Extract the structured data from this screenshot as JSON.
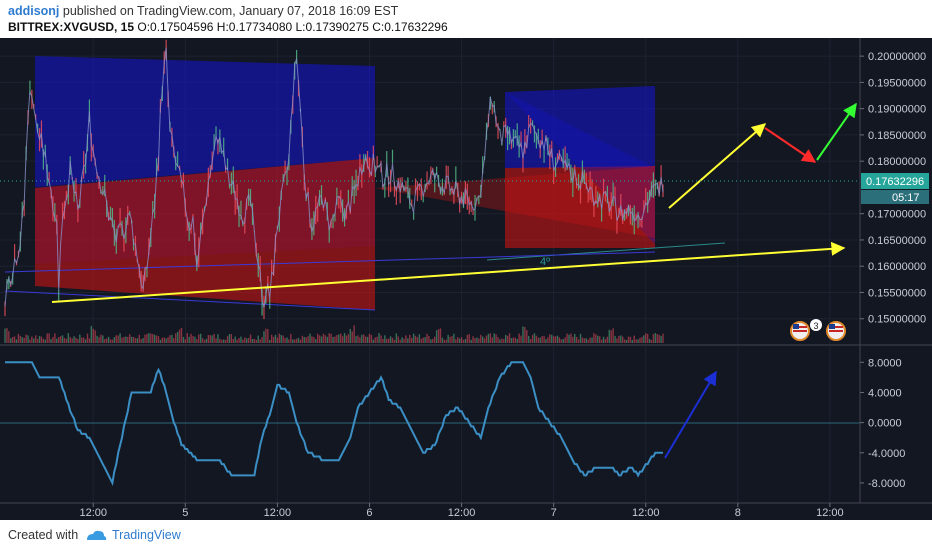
{
  "header": {
    "author": "addisonj",
    "published_text": "published on TradingView.com, January 07, 2018 16:09 EST",
    "symbol": "BITTREX:XVGUSD, 15",
    "ohlc": "O:0.17504596 H:0.17734080 L:0.17390275 C:0.17632296"
  },
  "footer": {
    "created_with": "Created with",
    "brand": "TradingView"
  },
  "colors": {
    "background": "#131722",
    "price_line": "#8a91c9",
    "price_up": "#53b987",
    "price_down": "#eb4d5c",
    "blue_channel": "#1414c8",
    "red_channel": "#c81414",
    "yellow_arrow": "#ffff33",
    "red_arrow": "#ff2a2a",
    "green_arrow": "#33ff33",
    "indicator_line": "#3b8fc4",
    "blue_arrow": "#1c2fd6",
    "last_price_tag": "#26a69a",
    "countdown_tag": "#2a6f7a"
  },
  "chart_data": [
    {
      "type": "line",
      "title": "",
      "ylabel": "",
      "ylim": [
        0.145,
        0.2025
      ],
      "y_ticks": [
        "0.20000000",
        "0.19500000",
        "0.19000000",
        "0.18500000",
        "0.18000000",
        "0.17000000",
        "0.16500000",
        "0.16000000",
        "0.15500000",
        "0.15000000"
      ],
      "last_price": "0.17632296",
      "countdown": "05:17",
      "x_tick_labels": [
        "12:00",
        "5",
        "12:00",
        "6",
        "12:00",
        "7",
        "12:00",
        "8",
        "12:00"
      ],
      "x_tick_positions_bars": [
        46,
        94,
        142,
        190,
        238,
        286,
        334,
        382,
        430
      ],
      "bar_count": 344,
      "annotation_label": "4º",
      "price_keypoints": [
        [
          0,
          0.1545
        ],
        [
          4,
          0.16
        ],
        [
          8,
          0.165
        ],
        [
          10,
          0.172
        ],
        [
          12,
          0.19
        ],
        [
          14,
          0.194
        ],
        [
          16,
          0.187
        ],
        [
          20,
          0.182
        ],
        [
          24,
          0.175
        ],
        [
          27,
          0.168
        ],
        [
          28,
          0.157
        ],
        [
          30,
          0.17
        ],
        [
          34,
          0.178
        ],
        [
          38,
          0.17
        ],
        [
          42,
          0.18
        ],
        [
          44,
          0.188
        ],
        [
          46,
          0.182
        ],
        [
          50,
          0.176
        ],
        [
          54,
          0.17
        ],
        [
          58,
          0.165
        ],
        [
          62,
          0.167
        ],
        [
          64,
          0.17
        ],
        [
          66,
          0.168
        ],
        [
          70,
          0.16
        ],
        [
          72,
          0.155
        ],
        [
          74,
          0.16
        ],
        [
          78,
          0.172
        ],
        [
          80,
          0.182
        ],
        [
          82,
          0.195
        ],
        [
          84,
          0.2
        ],
        [
          86,
          0.185
        ],
        [
          90,
          0.178
        ],
        [
          94,
          0.172
        ],
        [
          96,
          0.168
        ],
        [
          98,
          0.169
        ],
        [
          100,
          0.16
        ],
        [
          103,
          0.168
        ],
        [
          106,
          0.176
        ],
        [
          108,
          0.18
        ],
        [
          111,
          0.185
        ],
        [
          113,
          0.182
        ],
        [
          116,
          0.177
        ],
        [
          120,
          0.174
        ],
        [
          124,
          0.17
        ],
        [
          128,
          0.172
        ],
        [
          130,
          0.165
        ],
        [
          133,
          0.16
        ],
        [
          134,
          0.152
        ],
        [
          136,
          0.156
        ],
        [
          138,
          0.154
        ],
        [
          140,
          0.16
        ],
        [
          142,
          0.168
        ],
        [
          144,
          0.172
        ],
        [
          148,
          0.18
        ],
        [
          150,
          0.193
        ],
        [
          152,
          0.2
        ],
        [
          154,
          0.19
        ],
        [
          156,
          0.178
        ],
        [
          158,
          0.172
        ],
        [
          160,
          0.168
        ],
        [
          162,
          0.17
        ],
        [
          166,
          0.173
        ],
        [
          168,
          0.169
        ],
        [
          170,
          0.168
        ],
        [
          174,
          0.172
        ],
        [
          178,
          0.17
        ],
        [
          182,
          0.174
        ],
        [
          185,
          0.178
        ],
        [
          187,
          0.181
        ],
        [
          189,
          0.18
        ],
        [
          193,
          0.179
        ],
        [
          197,
          0.177
        ],
        [
          201,
          0.178
        ],
        [
          205,
          0.176
        ],
        [
          209,
          0.174
        ],
        [
          212,
          0.172
        ],
        [
          215,
          0.173
        ],
        [
          219,
          0.176
        ],
        [
          223,
          0.177
        ],
        [
          227,
          0.176
        ],
        [
          231,
          0.175
        ],
        [
          235,
          0.174
        ],
        [
          239,
          0.173
        ],
        [
          243,
          0.172
        ],
        [
          247,
          0.173
        ],
        [
          250,
          0.18
        ],
        [
          252,
          0.188
        ],
        [
          254,
          0.192
        ],
        [
          256,
          0.188
        ],
        [
          258,
          0.184
        ],
        [
          262,
          0.185
        ],
        [
          266,
          0.183
        ],
        [
          270,
          0.182
        ],
        [
          274,
          0.186
        ],
        [
          278,
          0.185
        ],
        [
          282,
          0.183
        ],
        [
          286,
          0.18
        ],
        [
          290,
          0.179
        ],
        [
          294,
          0.178
        ],
        [
          298,
          0.177
        ],
        [
          302,
          0.176
        ],
        [
          306,
          0.174
        ],
        [
          310,
          0.173
        ],
        [
          314,
          0.172
        ],
        [
          318,
          0.171
        ],
        [
          322,
          0.17
        ],
        [
          326,
          0.171
        ],
        [
          330,
          0.17
        ],
        [
          334,
          0.172
        ],
        [
          338,
          0.174
        ],
        [
          341,
          0.175
        ],
        [
          343,
          0.1763
        ]
      ]
    },
    {
      "type": "line",
      "title": "",
      "ylabel": "",
      "ylim": [
        -10,
        9.5
      ],
      "y_ticks": [
        "8.0000",
        "4.0000",
        "0.0000",
        "-4.0000",
        "-8.0000"
      ],
      "keypoints": [
        [
          0,
          8
        ],
        [
          14,
          8
        ],
        [
          18,
          6
        ],
        [
          28,
          6
        ],
        [
          32,
          3
        ],
        [
          38,
          -1
        ],
        [
          44,
          -2
        ],
        [
          52,
          -6
        ],
        [
          56,
          -8
        ],
        [
          60,
          -3
        ],
        [
          66,
          4
        ],
        [
          76,
          4
        ],
        [
          80,
          7
        ],
        [
          84,
          4
        ],
        [
          88,
          0
        ],
        [
          92,
          -3
        ],
        [
          100,
          -5
        ],
        [
          112,
          -5
        ],
        [
          118,
          -7
        ],
        [
          130,
          -7
        ],
        [
          134,
          -2
        ],
        [
          138,
          1
        ],
        [
          142,
          5
        ],
        [
          148,
          4
        ],
        [
          152,
          0
        ],
        [
          158,
          -4
        ],
        [
          166,
          -5
        ],
        [
          174,
          -5
        ],
        [
          180,
          -2
        ],
        [
          184,
          2
        ],
        [
          190,
          4
        ],
        [
          196,
          6
        ],
        [
          200,
          3
        ],
        [
          206,
          2
        ],
        [
          212,
          -1
        ],
        [
          218,
          -4
        ],
        [
          224,
          -3
        ],
        [
          230,
          1
        ],
        [
          236,
          2
        ],
        [
          242,
          0
        ],
        [
          248,
          -2
        ],
        [
          252,
          2
        ],
        [
          258,
          6
        ],
        [
          264,
          8
        ],
        [
          270,
          8
        ],
        [
          274,
          6
        ],
        [
          278,
          2
        ],
        [
          284,
          0
        ],
        [
          290,
          -2
        ],
        [
          296,
          -5
        ],
        [
          302,
          -7
        ],
        [
          308,
          -6
        ],
        [
          316,
          -6
        ],
        [
          320,
          -7
        ],
        [
          326,
          -6
        ],
        [
          330,
          -7
        ],
        [
          336,
          -5
        ],
        [
          340,
          -4
        ],
        [
          343,
          -4
        ]
      ]
    }
  ]
}
